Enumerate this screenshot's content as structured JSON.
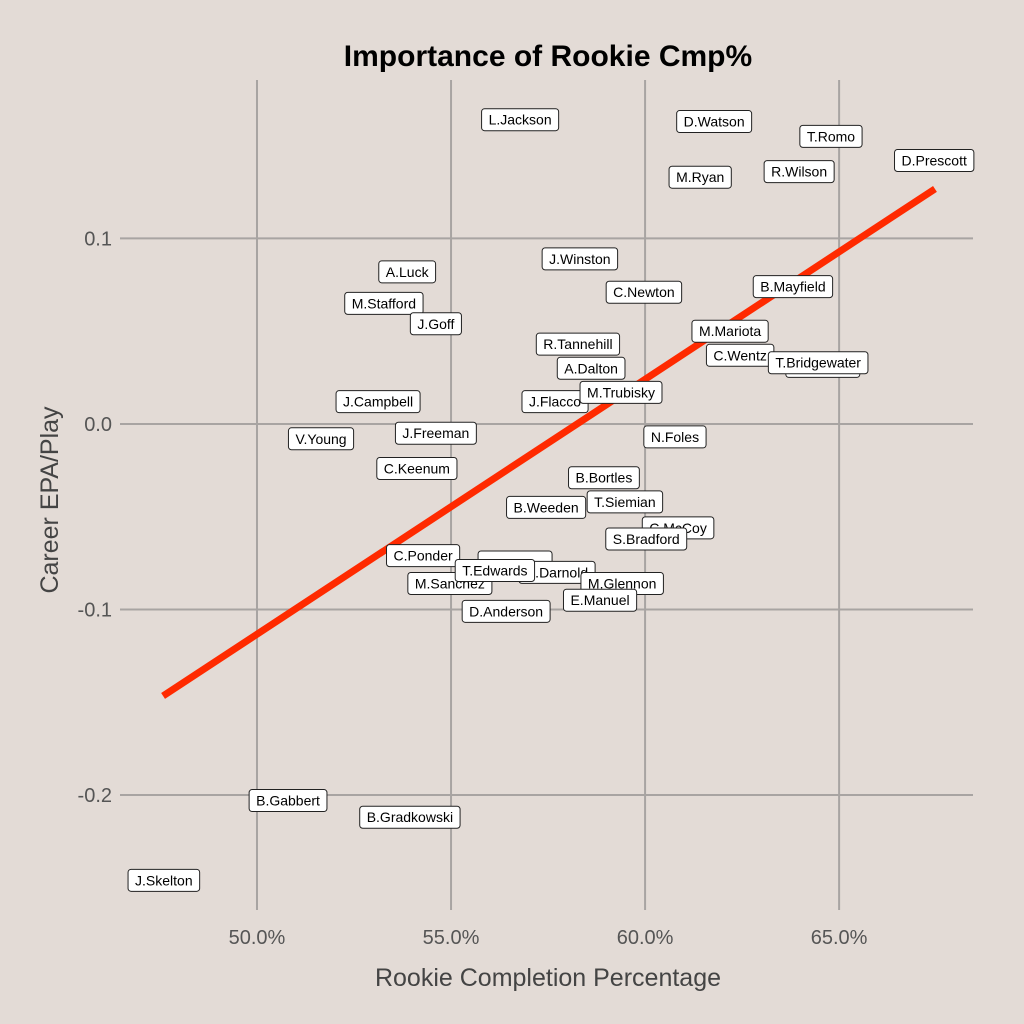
{
  "chart_data": {
    "type": "scatter",
    "title": "Importance of Rookie Cmp%",
    "xlabel": "Rookie Completion Percentage",
    "ylabel": "Career EPA/Play",
    "xlim": [
      46.47,
      68.45
    ],
    "ylim": [
      -0.262,
      0.1854
    ],
    "x_ticks": [
      50,
      55,
      60,
      65
    ],
    "x_tick_labels": [
      "50.0%",
      "55.0%",
      "60.0%",
      "65.0%"
    ],
    "y_ticks": [
      0.1,
      0.0,
      -0.1,
      -0.2
    ],
    "y_tick_labels": [
      "0.1",
      "0.0",
      "-0.1",
      "-0.2"
    ],
    "grid": true,
    "trend_line": {
      "color": "#ff2a00",
      "x": [
        47.58,
        67.47
      ],
      "y": [
        -0.1466,
        0.1267
      ]
    },
    "obscured_points": [
      {
        "x": 56.65,
        "y": -0.0744
      },
      {
        "x": 64.58,
        "y": 0.031
      }
    ],
    "points": [
      {
        "name": "L.Jackson",
        "x": 56.78,
        "y": 0.164
      },
      {
        "name": "D.Watson",
        "x": 61.78,
        "y": 0.163
      },
      {
        "name": "T.Romo",
        "x": 64.79,
        "y": 0.155
      },
      {
        "name": "D.Prescott",
        "x": 67.45,
        "y": 0.142
      },
      {
        "name": "M.Ryan",
        "x": 61.42,
        "y": 0.133
      },
      {
        "name": "R.Wilson",
        "x": 63.97,
        "y": 0.136
      },
      {
        "name": "J.Winston",
        "x": 58.32,
        "y": 0.089
      },
      {
        "name": "A.Luck",
        "x": 53.87,
        "y": 0.082
      },
      {
        "name": "C.Newton",
        "x": 59.97,
        "y": 0.071
      },
      {
        "name": "B.Mayfield",
        "x": 63.81,
        "y": 0.074
      },
      {
        "name": "M.Stafford",
        "x": 53.27,
        "y": 0.065
      },
      {
        "name": "J.Goff",
        "x": 54.61,
        "y": 0.054
      },
      {
        "name": "M.Mariota",
        "x": 62.19,
        "y": 0.05
      },
      {
        "name": "R.Tannehill",
        "x": 58.27,
        "y": 0.043
      },
      {
        "name": "C.Wentz",
        "x": 62.45,
        "y": 0.037
      },
      {
        "name": "T.Bridgewater",
        "x": 64.46,
        "y": 0.033
      },
      {
        "name": "A.Dalton",
        "x": 58.61,
        "y": 0.03
      },
      {
        "name": "J.Flacco",
        "x": 57.68,
        "y": 0.012
      },
      {
        "name": "M.Trubisky",
        "x": 59.38,
        "y": 0.017
      },
      {
        "name": "J.Campbell",
        "x": 53.12,
        "y": 0.012
      },
      {
        "name": "N.Foles",
        "x": 60.77,
        "y": -0.007
      },
      {
        "name": "V.Young",
        "x": 51.65,
        "y": -0.008
      },
      {
        "name": "J.Freeman",
        "x": 54.61,
        "y": -0.005
      },
      {
        "name": "C.Keenum",
        "x": 54.12,
        "y": -0.024
      },
      {
        "name": "B.Bortles",
        "x": 58.94,
        "y": -0.029
      },
      {
        "name": "B.Weeden",
        "x": 57.45,
        "y": -0.045
      },
      {
        "name": "T.Siemian",
        "x": 59.48,
        "y": -0.042
      },
      {
        "name": "C.McCoy",
        "x": 60.85,
        "y": -0.056
      },
      {
        "name": "S.Bradford",
        "x": 60.03,
        "y": -0.062
      },
      {
        "name": "M.Sanchez",
        "x": 54.97,
        "y": -0.086
      },
      {
        "name": "C.Ponder",
        "x": 54.28,
        "y": -0.071
      },
      {
        "name": "S.Darnold",
        "x": 57.73,
        "y": -0.08
      },
      {
        "name": "T.Edwards",
        "x": 56.13,
        "y": -0.079
      },
      {
        "name": "M.Glennon",
        "x": 59.41,
        "y": -0.086
      },
      {
        "name": "E.Manuel",
        "x": 58.84,
        "y": -0.095
      },
      {
        "name": "D.Anderson",
        "x": 56.42,
        "y": -0.101
      },
      {
        "name": "B.Gabbert",
        "x": 50.8,
        "y": -0.203
      },
      {
        "name": "B.Gradkowski",
        "x": 53.94,
        "y": -0.212
      },
      {
        "name": "J.Skelton",
        "x": 47.6,
        "y": -0.246
      }
    ]
  }
}
